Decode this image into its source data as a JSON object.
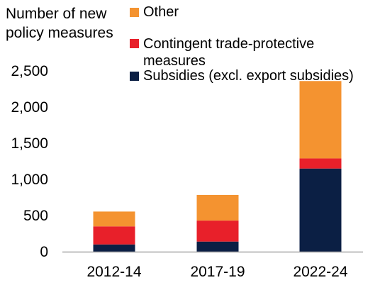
{
  "chart_data": {
    "type": "bar",
    "stacked": true,
    "ylabel_lines": [
      "Number of new",
      "policy measures"
    ],
    "categories": [
      "2012-14",
      "2017-19",
      "2022-24"
    ],
    "series": [
      {
        "name": "Subsidies (excl. export subsidies)",
        "color": "#0b1f44",
        "values": [
          100,
          140,
          1150
        ]
      },
      {
        "name": "Contingent trade-protective measures",
        "color": "#e8202a",
        "values": [
          250,
          290,
          140
        ]
      },
      {
        "name": "Other",
        "color": "#f49330",
        "values": [
          205,
          355,
          1070
        ]
      }
    ],
    "legend_order": [
      2,
      1,
      0
    ],
    "legend_placement": "top",
    "ylim": [
      0,
      2500
    ],
    "yticks": [
      0,
      500,
      1000,
      1500,
      2000,
      2500
    ],
    "ytick_labels": [
      "0",
      "500",
      "1,000",
      "1,500",
      "2,000",
      "2,500"
    ],
    "grid": false
  }
}
